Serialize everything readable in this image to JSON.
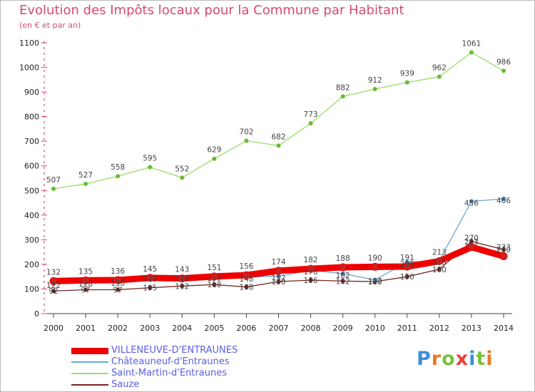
{
  "title": "Evolution des Impôts locaux pour la Commune par Habitant",
  "subtitle": "(en € et par an)",
  "logo_text": "Proxiti",
  "colors": {
    "title": "#d84a6e",
    "legend_text": "#5a5ee0",
    "logo_p": "#3d8fd6",
    "logo_r": "#e87a22",
    "logo_o": "#7cc043",
    "logo_x": "#e8403a",
    "logo_i": "#3d8fd6",
    "logo_t": "#7cc043",
    "logo_i2": "#e87a22"
  },
  "chart_data": {
    "type": "line",
    "x": [
      "2000",
      "2001",
      "2002",
      "2003",
      "2004",
      "2005",
      "2006",
      "2007",
      "2008",
      "2009",
      "2010",
      "2011",
      "2012",
      "2013",
      "2014"
    ],
    "ylim": [
      0,
      1100
    ],
    "yticks": [
      0,
      100,
      200,
      300,
      400,
      500,
      600,
      700,
      800,
      900,
      1000,
      1100
    ],
    "grid": false,
    "legend_position": "bottom-left",
    "series": [
      {
        "name": "VILLENEUVE-D'ENTRAUNES",
        "color": "#ee0000",
        "line_width": 9,
        "marker_color": "#cc2222",
        "values": [
          132,
          135,
          136,
          145,
          143,
          151,
          156,
          174,
          182,
          188,
          190,
          191,
          213,
          270,
          233
        ],
        "labels": [
          132,
          135,
          136,
          145,
          143,
          151,
          156,
          174,
          182,
          188,
          190,
          191,
          213,
          270,
          233
        ]
      },
      {
        "name": "Châteauneuf-d'Entraunes",
        "color": "#6aaad6",
        "line_width": 1.3,
        "marker_color": "#3a7fc0",
        "values": [
          122,
          128,
          130,
          148,
          148,
          150,
          148,
          152,
          176,
          162,
          137,
          209,
          215,
          456,
          466
        ],
        "labels": [
          122,
          128,
          130,
          148,
          148,
          150,
          148,
          152,
          176,
          162,
          137,
          209,
          215,
          456,
          466
        ]
      },
      {
        "name": "Saint-Martin-d'Entraunes",
        "color": "#99dd66",
        "line_width": 1.3,
        "marker_color": "#66bb33",
        "values": [
          507,
          527,
          558,
          595,
          552,
          629,
          702,
          682,
          773,
          882,
          912,
          939,
          962,
          1061,
          986
        ],
        "labels": [
          507,
          527,
          558,
          595,
          552,
          629,
          702,
          682,
          773,
          882,
          912,
          939,
          962,
          1061,
          986
        ]
      },
      {
        "name": "Sauze",
        "color": "#772222",
        "line_width": 1.3,
        "marker_color": "#662222",
        "values": [
          92,
          97,
          97,
          105,
          112,
          118,
          108,
          130,
          136,
          132,
          130,
          150,
          180,
          293,
          260
        ],
        "labels": [
          92,
          97,
          97,
          105,
          112,
          118,
          108,
          130,
          136,
          132,
          130,
          150,
          180,
          293,
          260
        ]
      }
    ]
  }
}
